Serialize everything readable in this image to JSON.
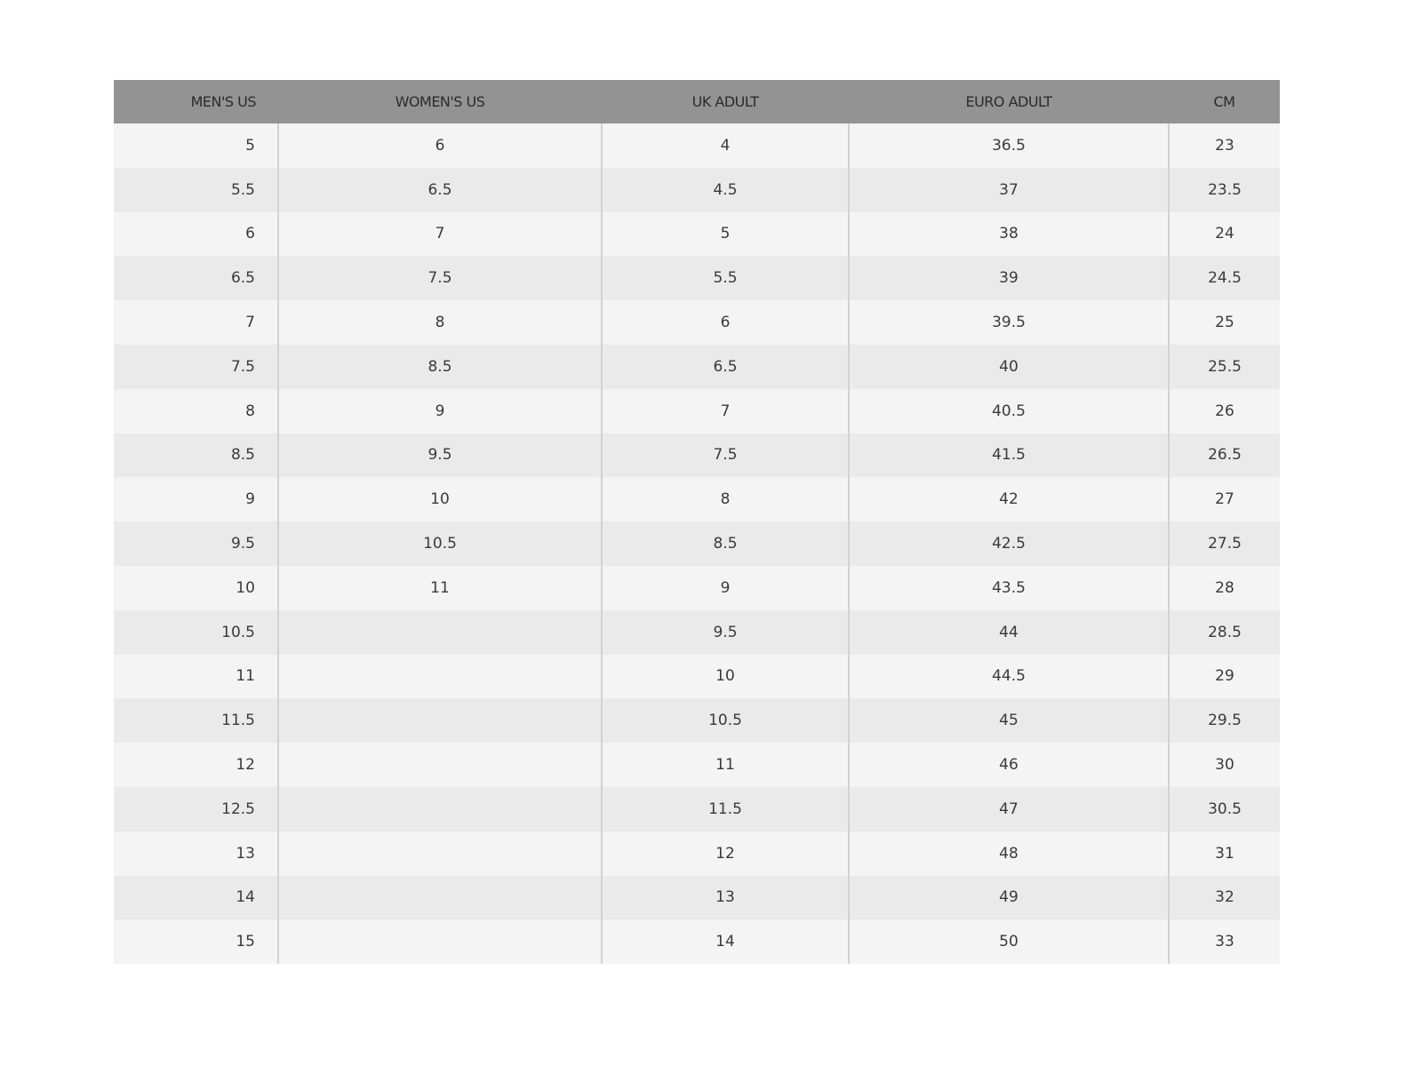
{
  "table": {
    "headers": [
      "MEN'S US",
      "WOMEN'S US",
      "UK ADULT",
      "EURO ADULT",
      "CM"
    ],
    "rows": [
      [
        "5",
        "6",
        "4",
        "36.5",
        "23"
      ],
      [
        "5.5",
        "6.5",
        "4.5",
        "37",
        "23.5"
      ],
      [
        "6",
        "7",
        "5",
        "38",
        "24"
      ],
      [
        "6.5",
        "7.5",
        "5.5",
        "39",
        "24.5"
      ],
      [
        "7",
        "8",
        "6",
        "39.5",
        "25"
      ],
      [
        "7.5",
        "8.5",
        "6.5",
        "40",
        "25.5"
      ],
      [
        "8",
        "9",
        "7",
        "40.5",
        "26"
      ],
      [
        "8.5",
        "9.5",
        "7.5",
        "41.5",
        "26.5"
      ],
      [
        "9",
        "10",
        "8",
        "42",
        "27"
      ],
      [
        "9.5",
        "10.5",
        "8.5",
        "42.5",
        "27.5"
      ],
      [
        "10",
        "11",
        "9",
        "43.5",
        "28"
      ],
      [
        "10.5",
        "",
        "9.5",
        "44",
        "28.5"
      ],
      [
        "11",
        "",
        "10",
        "44.5",
        "29"
      ],
      [
        "11.5",
        "",
        "10.5",
        "45",
        "29.5"
      ],
      [
        "12",
        "",
        "11",
        "46",
        "30"
      ],
      [
        "12.5",
        "",
        "11.5",
        "47",
        "30.5"
      ],
      [
        "13",
        "",
        "12",
        "48",
        "31"
      ],
      [
        "14",
        "",
        "13",
        "49",
        "32"
      ],
      [
        "15",
        "",
        "14",
        "50",
        "33"
      ]
    ]
  },
  "colors": {
    "header_bg": "#939393",
    "row_light": "#f4f4f4",
    "row_dark": "#eaeaea",
    "divider": "#d2d2d2"
  }
}
